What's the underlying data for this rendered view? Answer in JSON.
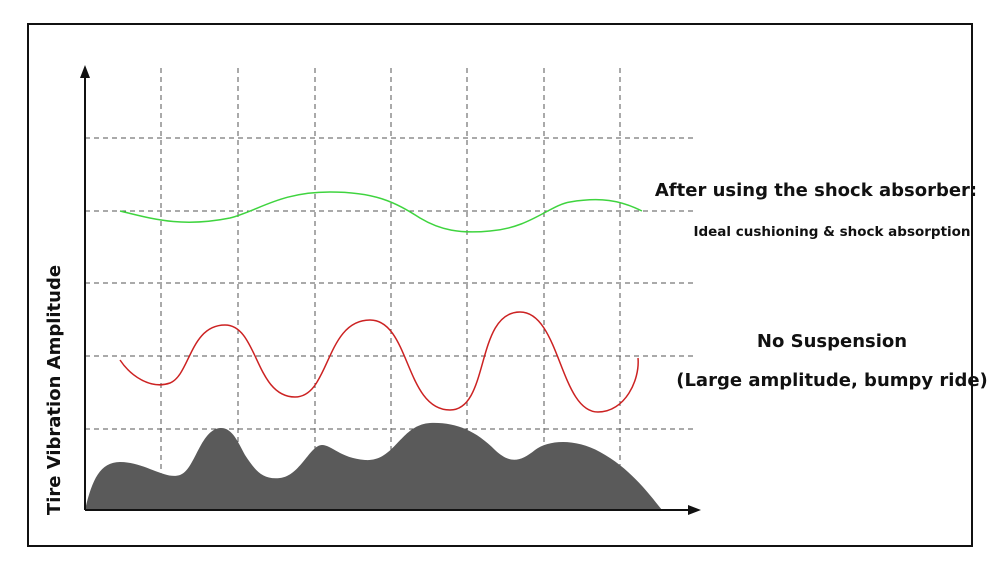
{
  "y_axis_label": "Tire Vibration Amplitude",
  "damped": {
    "title": "After using the shock absorber:",
    "subtitle": "Ideal cushioning & shock absorption"
  },
  "undamped": {
    "title": "No Suspension",
    "subtitle": "(Large amplitude, bumpy ride)"
  }
}
